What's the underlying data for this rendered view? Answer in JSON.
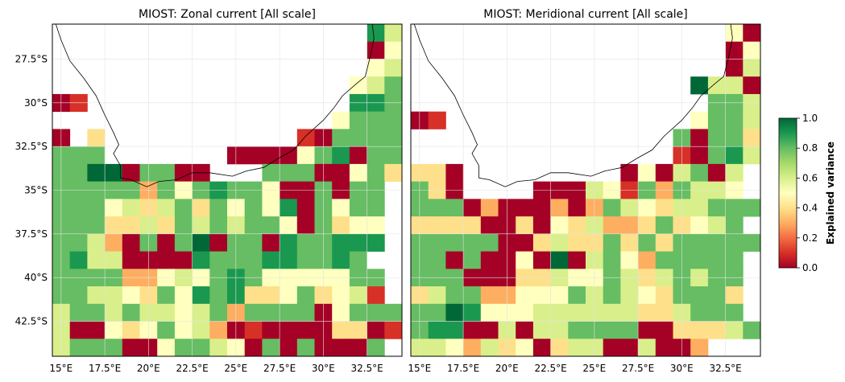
{
  "colorbar": {
    "label": "Explained variance",
    "ticks": [
      "1.0",
      "0.8",
      "0.6",
      "0.4",
      "0.2",
      "0.0"
    ],
    "colors": [
      "#a50026",
      "#d73027",
      "#f46d43",
      "#fdae61",
      "#fee08b",
      "#ffffbf",
      "#d9ef8b",
      "#a6d96a",
      "#66bd63",
      "#1a9850",
      "#006837"
    ]
  },
  "axes": {
    "x_ticks": [
      "15°E",
      "17.5°E",
      "20°E",
      "22.5°E",
      "25°E",
      "27.5°E",
      "30°E",
      "32.5°E"
    ],
    "y_ticks": [
      "27.5°S",
      "30°S",
      "32.5°S",
      "35°S",
      "37.5°S",
      "40°S",
      "42.5°S"
    ],
    "x_values": [
      15,
      17.5,
      20,
      22.5,
      25,
      27.5,
      30,
      32.5
    ],
    "y_values": [
      -27.5,
      -30,
      -32.5,
      -35,
      -37.5,
      -40,
      -42.5
    ],
    "lon_range": [
      14.5,
      34.5
    ],
    "lat_range": [
      -44.5,
      -25.5
    ]
  },
  "panels": [
    {
      "title": "MIOST: Zonal current [All scale]",
      "grid": [
        "..................75",
        "..................04",
        "..................45",
        ".................456",
        "01...............776",
        "................4666",
        "0.3...........106666",
        "666.......0000467066",
        "668806600...66600463",
        "6666626467664006066",
        "6664535636464706466",
        "6663353656566406344",
        "6652060680660766777",
        "675500007666776676",
        "6666224546764444466",
        "6655436476733463451",
        "56656554562666604666",
        "50043464520100003301",
        "5666004665406060006"
      ]
    },
    {
      "title": "MIOST: Meridional current [All scale]",
      "grid": [
        "..................40",
        "..................04",
        "..................05",
        "................8550",
        ".................665",
        "01..............4665",
        "...............60663",
        "...............10675",
        "330.........0405605",
        "630....000541626554",
        "66602000202654355666",
        "3333003043522363456",
        "66666003533636366666",
        "6606004080564266666",
        "6660003354465356566",
        "3566224446565436663",
        "6687444555555335666",
        "67700505566660033356",
        "55425340355005002",
        "66444234300000000"
      ]
    }
  ]
}
